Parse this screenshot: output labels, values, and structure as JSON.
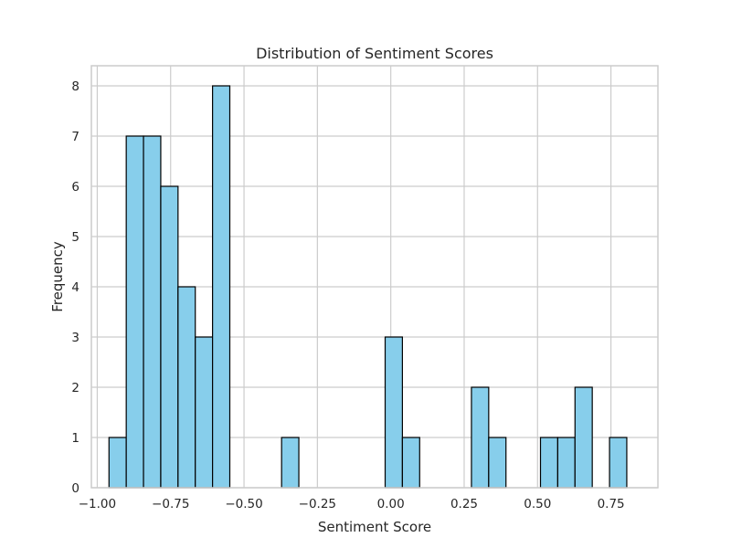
{
  "chart_data": {
    "type": "bar",
    "title": "Distribution of Sentiment Scores",
    "xlabel": "Sentiment Score",
    "ylabel": "Frequency",
    "xlim": [
      -1.02,
      0.91
    ],
    "ylim": [
      0,
      8.4
    ],
    "grid": true,
    "x_ticks": [
      -1.0,
      -0.75,
      -0.5,
      -0.25,
      0.0,
      0.25,
      0.5,
      0.75
    ],
    "x_tick_labels": [
      "−1.00",
      "−0.75",
      "−0.50",
      "−0.25",
      "0.00",
      "0.25",
      "0.50",
      "0.75"
    ],
    "y_ticks": [
      0,
      1,
      2,
      3,
      4,
      5,
      6,
      7,
      8
    ],
    "y_tick_labels": [
      "0",
      "1",
      "2",
      "3",
      "4",
      "5",
      "6",
      "7",
      "8"
    ],
    "bin_width": 0.0588,
    "bins": [
      {
        "x0": -0.96,
        "count": 1
      },
      {
        "x0": -0.9012,
        "count": 7
      },
      {
        "x0": -0.8424,
        "count": 7
      },
      {
        "x0": -0.7836,
        "count": 6
      },
      {
        "x0": -0.7248,
        "count": 4
      },
      {
        "x0": -0.666,
        "count": 3
      },
      {
        "x0": -0.6072,
        "count": 8
      },
      {
        "x0": -0.5484,
        "count": 0
      },
      {
        "x0": -0.4896,
        "count": 0
      },
      {
        "x0": -0.4308,
        "count": 0
      },
      {
        "x0": -0.372,
        "count": 1
      },
      {
        "x0": -0.3132,
        "count": 0
      },
      {
        "x0": -0.2544,
        "count": 0
      },
      {
        "x0": -0.1956,
        "count": 0
      },
      {
        "x0": -0.1368,
        "count": 0
      },
      {
        "x0": -0.078,
        "count": 0
      },
      {
        "x0": -0.0192,
        "count": 3
      },
      {
        "x0": 0.0396,
        "count": 1
      },
      {
        "x0": 0.0984,
        "count": 0
      },
      {
        "x0": 0.1572,
        "count": 0
      },
      {
        "x0": 0.216,
        "count": 0
      },
      {
        "x0": 0.2748,
        "count": 2
      },
      {
        "x0": 0.3336,
        "count": 1
      },
      {
        "x0": 0.3924,
        "count": 0
      },
      {
        "x0": 0.4512,
        "count": 0
      },
      {
        "x0": 0.51,
        "count": 1
      },
      {
        "x0": 0.5688,
        "count": 1
      },
      {
        "x0": 0.6276,
        "count": 2
      },
      {
        "x0": 0.6864,
        "count": 0
      },
      {
        "x0": 0.7452,
        "count": 1
      }
    ],
    "colors": {
      "bar_fill": "#87ceeb",
      "bar_edge": "#000000",
      "grid": "#cccccc",
      "frame": "#cccccc",
      "text": "#262626"
    }
  }
}
